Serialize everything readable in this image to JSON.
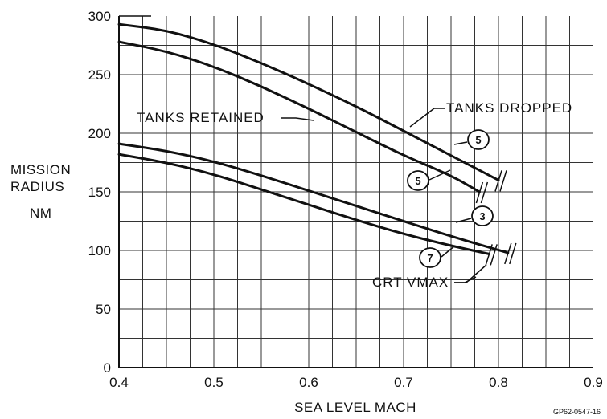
{
  "chart_data": {
    "type": "line",
    "title": "",
    "xlabel": "SEA LEVEL MACH",
    "ylabel": [
      "MISSION",
      "RADIUS",
      "NM"
    ],
    "xlim": [
      0.4,
      0.9
    ],
    "ylim": [
      0,
      300
    ],
    "xticks": [
      "0.4",
      "0.5",
      "0.6",
      "0.7",
      "0.8",
      "0.9"
    ],
    "yticks": [
      "0",
      "50",
      "100",
      "150",
      "200",
      "250",
      "300"
    ],
    "grid": true,
    "series": [
      {
        "x": [
          0.4,
          0.45,
          0.5,
          0.55,
          0.6,
          0.65,
          0.7,
          0.75,
          0.8
        ],
        "y": [
          293,
          288,
          276,
          260,
          242,
          223,
          202,
          181,
          160
        ]
      },
      {
        "x": [
          0.4,
          0.45,
          0.5,
          0.55,
          0.6,
          0.65,
          0.7,
          0.75,
          0.78
        ],
        "y": [
          278,
          270,
          257,
          240,
          221,
          201,
          181,
          164,
          150
        ]
      },
      {
        "x": [
          0.4,
          0.45,
          0.5,
          0.55,
          0.6,
          0.65,
          0.7,
          0.75,
          0.81
        ],
        "y": [
          191,
          185,
          176,
          164,
          151,
          138,
          125,
          112,
          98
        ]
      },
      {
        "x": [
          0.4,
          0.45,
          0.5,
          0.55,
          0.6,
          0.65,
          0.7,
          0.75,
          0.79
        ],
        "y": [
          182,
          175,
          165,
          152,
          139,
          126,
          114,
          104,
          97
        ]
      }
    ],
    "annotations": [
      {
        "text": "TANKS RETAINED"
      },
      {
        "text": "TANKS DROPPED"
      },
      {
        "text": "CRT VMAX"
      }
    ],
    "circle_labels": [
      "5",
      "5",
      "3",
      "7"
    ],
    "figure_id": "GP62-0547-16"
  }
}
